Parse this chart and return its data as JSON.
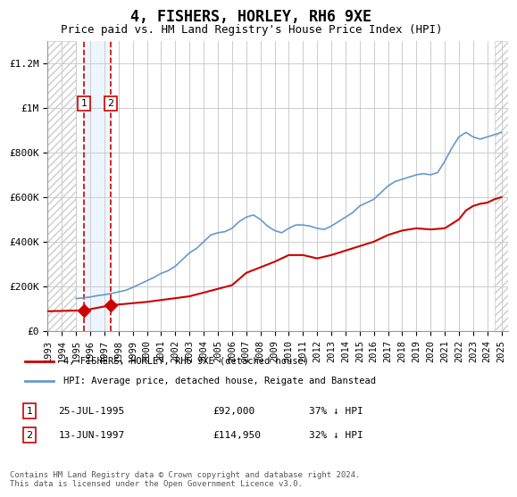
{
  "title": "4, FISHERS, HORLEY, RH6 9XE",
  "subtitle": "Price paid vs. HM Land Registry's House Price Index (HPI)",
  "ylabel_ticks": [
    "£0",
    "£200K",
    "£400K",
    "£600K",
    "£800K",
    "£1M",
    "£1.2M"
  ],
  "ytick_vals": [
    0,
    200000,
    400000,
    600000,
    800000,
    1000000,
    1200000
  ],
  "ylim": [
    0,
    1300000
  ],
  "xlim_start": 1993.0,
  "xlim_end": 2025.5,
  "hpi_years": [
    1995,
    1995.5,
    1996,
    1996.5,
    1997,
    1997.5,
    1998,
    1998.5,
    1999,
    1999.5,
    2000,
    2000.5,
    2001,
    2001.5,
    2002,
    2002.5,
    2003,
    2003.5,
    2004,
    2004.5,
    2005,
    2005.5,
    2006,
    2006.5,
    2007,
    2007.5,
    2008,
    2008.5,
    2009,
    2009.5,
    2010,
    2010.5,
    2011,
    2011.5,
    2012,
    2012.5,
    2013,
    2013.5,
    2014,
    2014.5,
    2015,
    2015.5,
    2016,
    2016.5,
    2017,
    2017.5,
    2018,
    2018.5,
    2019,
    2019.5,
    2020,
    2020.5,
    2021,
    2021.5,
    2022,
    2022.5,
    2023,
    2023.5,
    2024,
    2024.5,
    2025
  ],
  "hpi_values": [
    145000,
    148000,
    152000,
    158000,
    162000,
    168000,
    175000,
    182000,
    195000,
    210000,
    225000,
    240000,
    258000,
    270000,
    290000,
    320000,
    350000,
    370000,
    400000,
    430000,
    440000,
    445000,
    460000,
    490000,
    510000,
    520000,
    500000,
    470000,
    450000,
    440000,
    460000,
    475000,
    475000,
    470000,
    460000,
    455000,
    470000,
    490000,
    510000,
    530000,
    560000,
    575000,
    590000,
    620000,
    650000,
    670000,
    680000,
    690000,
    700000,
    705000,
    700000,
    710000,
    760000,
    820000,
    870000,
    890000,
    870000,
    860000,
    870000,
    880000,
    890000
  ],
  "price_years": [
    1995.57,
    1997.45
  ],
  "price_values": [
    92000,
    114950
  ],
  "price_line_years": [
    1993,
    1995.57,
    1997.45,
    2000,
    2003,
    2006,
    2007,
    2009,
    2010,
    2011,
    2012,
    2013,
    2013.5,
    2014,
    2015,
    2016,
    2016.5,
    2017,
    2018,
    2019,
    2020,
    2021,
    2022,
    2022.5,
    2023,
    2023.5,
    2024,
    2024.5,
    2025
  ],
  "price_line_values": [
    88000,
    92000,
    114950,
    130000,
    155000,
    205000,
    260000,
    310000,
    340000,
    340000,
    325000,
    340000,
    350000,
    360000,
    380000,
    400000,
    415000,
    430000,
    450000,
    460000,
    455000,
    460000,
    500000,
    540000,
    560000,
    570000,
    575000,
    590000,
    600000
  ],
  "transaction1_x": 1995.57,
  "transaction1_label": "1",
  "transaction1_price": "£92,000",
  "transaction1_date": "25-JUL-1995",
  "transaction1_hpi": "37% ↓ HPI",
  "transaction2_x": 1997.45,
  "transaction2_label": "2",
  "transaction2_price": "£114,950",
  "transaction2_date": "13-JUN-1997",
  "transaction2_hpi": "32% ↓ HPI",
  "hatch_left_end": 1995.0,
  "hatch_right_start": 2024.5,
  "legend_line1": "4, FISHERS, HORLEY, RH6 9XE (detached house)",
  "legend_line2": "HPI: Average price, detached house, Reigate and Banstead",
  "line_color_price": "#cc0000",
  "line_color_hpi": "#6699cc",
  "marker_color": "#cc0000",
  "footnote": "Contains HM Land Registry data © Crown copyright and database right 2024.\nThis data is licensed under the Open Government Licence v3.0.",
  "xtick_years": [
    "1993",
    "1994",
    "1995",
    "1996",
    "1997",
    "1998",
    "1999",
    "2000",
    "2001",
    "2002",
    "2003",
    "2004",
    "2005",
    "2006",
    "2007",
    "2008",
    "2009",
    "2010",
    "2011",
    "2012",
    "2013",
    "2014",
    "2015",
    "2016",
    "2017",
    "2018",
    "2019",
    "2020",
    "2021",
    "2022",
    "2023",
    "2024",
    "2025"
  ],
  "xtick_vals": [
    1993,
    1994,
    1995,
    1996,
    1997,
    1998,
    1999,
    2000,
    2001,
    2002,
    2003,
    2004,
    2005,
    2006,
    2007,
    2008,
    2009,
    2010,
    2011,
    2012,
    2013,
    2014,
    2015,
    2016,
    2017,
    2018,
    2019,
    2020,
    2021,
    2022,
    2023,
    2024,
    2025
  ]
}
